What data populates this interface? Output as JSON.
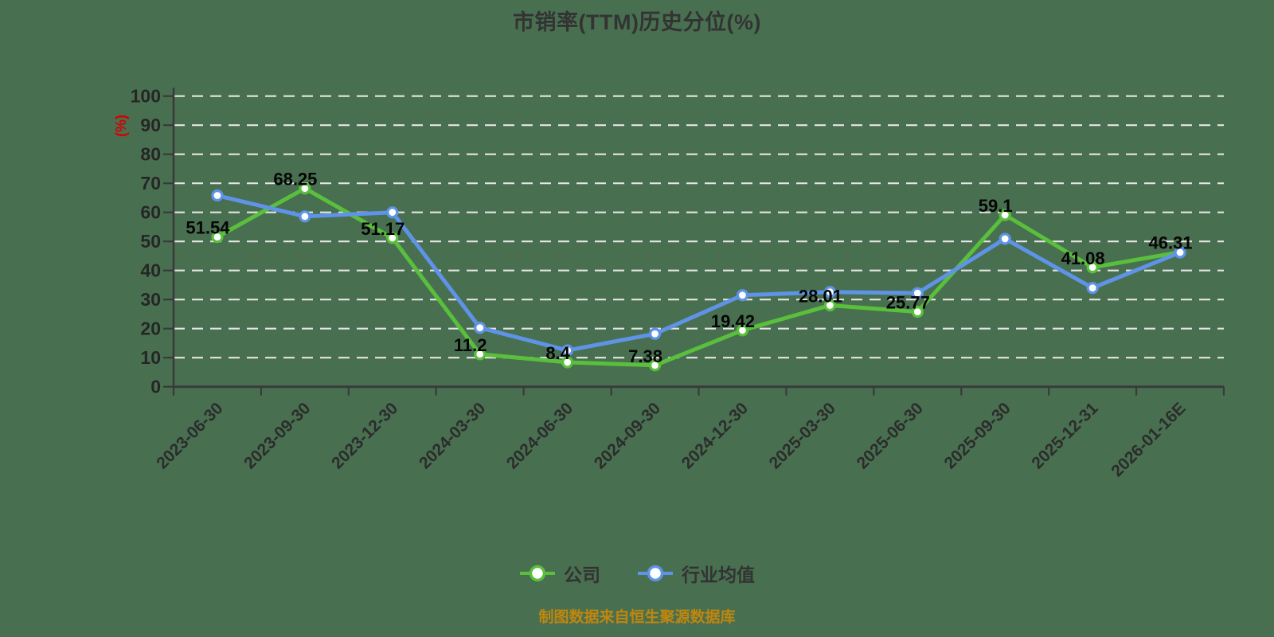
{
  "title": {
    "text": "市销率(TTM)历史分位(%)"
  },
  "y_axis": {
    "unit": "(%)",
    "unit_color": "#d40000",
    "ticks": [
      0,
      10,
      20,
      30,
      40,
      50,
      60,
      70,
      80,
      90,
      100
    ]
  },
  "footer": {
    "text": "制图数据来自恒生聚源数据库"
  },
  "legend": {
    "items": [
      {
        "label": "公司"
      },
      {
        "label": "行业均值"
      }
    ]
  },
  "colors": {
    "background": "#487050",
    "grid": "#e5e5e5",
    "axis": "#3a3a3a",
    "tick_label": "#262626",
    "title": "#333333",
    "data_label": "#050505",
    "footer": "#c0860e"
  },
  "chart_data": {
    "type": "line",
    "title": "市销率(TTM)历史分位(%)",
    "ylabel": "(%)",
    "ylim": [
      0,
      100
    ],
    "y_tick_step": 10,
    "grid": "horizontal-dashed",
    "legend_position": "bottom",
    "categories": [
      "2023-06-30",
      "2023-09-30",
      "2023-12-30",
      "2024-03-30",
      "2024-06-30",
      "2024-09-30",
      "2024-12-30",
      "2025-03-30",
      "2025-06-30",
      "2025-09-30",
      "2025-12-31",
      "2026-01-16E"
    ],
    "series": [
      {
        "name": "公司",
        "color": "#5abf3c",
        "values": [
          51.54,
          68.25,
          51.17,
          11.2,
          8.4,
          7.38,
          19.42,
          28.01,
          25.77,
          59.1,
          41.08,
          46.31
        ],
        "labels_shown": true
      },
      {
        "name": "行业均值",
        "color": "#5f93e8",
        "values": [
          65.8,
          58.6,
          60,
          20.3,
          12.5,
          18.2,
          31.5,
          32.6,
          32.2,
          50.9,
          34,
          46.2
        ],
        "labels_shown": false
      }
    ]
  }
}
